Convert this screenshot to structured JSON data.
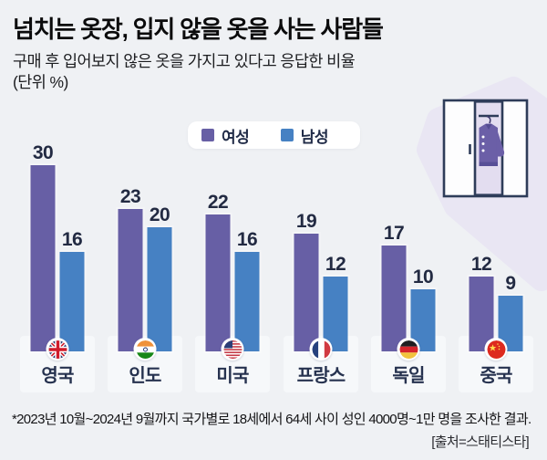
{
  "header": {
    "title": "넘치는 옷장, 입지 않을 옷을 사는 사람들",
    "subtitle": "구매 후 입어보지 않은 옷을 가지고 있다고 응답한 비율",
    "unit_note": "(단위 %)"
  },
  "legend": {
    "position": "top-center",
    "items": [
      {
        "label": "여성",
        "color": "#675fa5"
      },
      {
        "label": "남성",
        "color": "#4681c3"
      }
    ]
  },
  "chart_data": {
    "type": "bar",
    "categories": [
      "영국",
      "인도",
      "미국",
      "프랑스",
      "독일",
      "중국"
    ],
    "series": [
      {
        "name": "여성",
        "color": "#675fa5",
        "values": [
          30,
          23,
          22,
          19,
          17,
          12
        ]
      },
      {
        "name": "남성",
        "color": "#4681c3",
        "values": [
          16,
          20,
          16,
          12,
          10,
          9
        ]
      }
    ],
    "flags": [
      "flag-uk-icon",
      "flag-india-icon",
      "flag-usa-icon",
      "flag-france-icon",
      "flag-germany-icon",
      "flag-china-icon"
    ],
    "unit": "%",
    "ylim": [
      0,
      32
    ],
    "grid": false,
    "value_labels": true
  },
  "colors": {
    "background": "#eff1f4",
    "band": "#f6f8fa",
    "value_label": "#222a42",
    "category_label": "#26324f",
    "blob": "#e9e6f3",
    "wardrobe_outline": "#2e3c59",
    "jacket": "#6b5fa7"
  },
  "footer": {
    "footnote": "*2023년 10월~2024년 9월까지 국가별로 18세에서 64세 사이 성인 4000명~1만 명을 조사한 결과.",
    "source": "[출처=스태티스타]"
  }
}
